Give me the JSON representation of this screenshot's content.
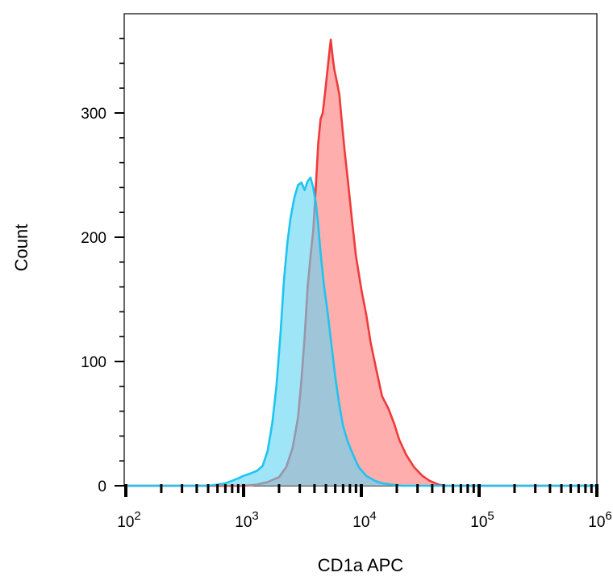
{
  "chart_data": {
    "type": "area",
    "title": "",
    "xlabel": "CD1a APC",
    "ylabel": "Count",
    "x_scale": "log",
    "xlim": [
      100.0,
      1000000.0
    ],
    "ylim": [
      0,
      370
    ],
    "x_ticks": [
      {
        "value": 100,
        "base": "10",
        "exp": "2"
      },
      {
        "value": 1000,
        "base": "10",
        "exp": "3"
      },
      {
        "value": 10000,
        "base": "10",
        "exp": "4"
      },
      {
        "value": 100000,
        "base": "10",
        "exp": "5"
      },
      {
        "value": 1000000,
        "base": "10",
        "exp": "6"
      }
    ],
    "y_ticks": [
      {
        "value": 0,
        "label": "0"
      },
      {
        "value": 100,
        "label": "100"
      },
      {
        "value": 200,
        "label": "200"
      },
      {
        "value": 300,
        "label": "300"
      }
    ],
    "grid": false,
    "legend": "none",
    "series": [
      {
        "color": "#f03a3a",
        "fill": "#ff6b6b",
        "points": [
          [
            100,
            0
          ],
          [
            1000,
            0
          ],
          [
            1300,
            1
          ],
          [
            1600,
            3
          ],
          [
            2000,
            7
          ],
          [
            2300,
            15
          ],
          [
            2600,
            30
          ],
          [
            2900,
            55
          ],
          [
            3100,
            85
          ],
          [
            3300,
            120
          ],
          [
            3500,
            160
          ],
          [
            3700,
            185
          ],
          [
            3900,
            205
          ],
          [
            4100,
            240
          ],
          [
            4300,
            275
          ],
          [
            4500,
            295
          ],
          [
            4700,
            300
          ],
          [
            4900,
            315
          ],
          [
            5100,
            330
          ],
          [
            5300,
            345
          ],
          [
            5500,
            359
          ],
          [
            5700,
            345
          ],
          [
            5900,
            335
          ],
          [
            6200,
            325
          ],
          [
            6500,
            315
          ],
          [
            6800,
            295
          ],
          [
            7200,
            270
          ],
          [
            7700,
            245
          ],
          [
            8300,
            215
          ],
          [
            9000,
            185
          ],
          [
            10000,
            158
          ],
          [
            11000,
            138
          ],
          [
            12000,
            115
          ],
          [
            13500,
            92
          ],
          [
            15000,
            72
          ],
          [
            17000,
            62
          ],
          [
            19000,
            50
          ],
          [
            21000,
            37
          ],
          [
            24000,
            25
          ],
          [
            28000,
            15
          ],
          [
            33000,
            8
          ],
          [
            38000,
            4
          ],
          [
            45000,
            1
          ],
          [
            52000,
            0
          ],
          [
            1000000,
            0
          ]
        ]
      },
      {
        "color": "#1ec4f0",
        "fill": "#5fd3f3",
        "points": [
          [
            100,
            0
          ],
          [
            500,
            0
          ],
          [
            600,
            1
          ],
          [
            700,
            2
          ],
          [
            800,
            4
          ],
          [
            900,
            6
          ],
          [
            1000,
            8
          ],
          [
            1150,
            10
          ],
          [
            1300,
            12
          ],
          [
            1450,
            16
          ],
          [
            1600,
            28
          ],
          [
            1750,
            50
          ],
          [
            1900,
            80
          ],
          [
            2050,
            120
          ],
          [
            2200,
            165
          ],
          [
            2350,
            195
          ],
          [
            2500,
            215
          ],
          [
            2700,
            232
          ],
          [
            2900,
            242
          ],
          [
            3100,
            244
          ],
          [
            3300,
            238
          ],
          [
            3500,
            245
          ],
          [
            3700,
            248
          ],
          [
            3900,
            240
          ],
          [
            4100,
            228
          ],
          [
            4300,
            210
          ],
          [
            4500,
            188
          ],
          [
            4800,
            162
          ],
          [
            5200,
            138
          ],
          [
            5600,
            112
          ],
          [
            6000,
            88
          ],
          [
            6500,
            65
          ],
          [
            7000,
            48
          ],
          [
            7700,
            35
          ],
          [
            8500,
            25
          ],
          [
            9500,
            15
          ],
          [
            11000,
            8
          ],
          [
            13000,
            4
          ],
          [
            15000,
            2
          ],
          [
            18000,
            1
          ],
          [
            22000,
            0
          ],
          [
            1000000,
            0
          ]
        ]
      }
    ]
  }
}
